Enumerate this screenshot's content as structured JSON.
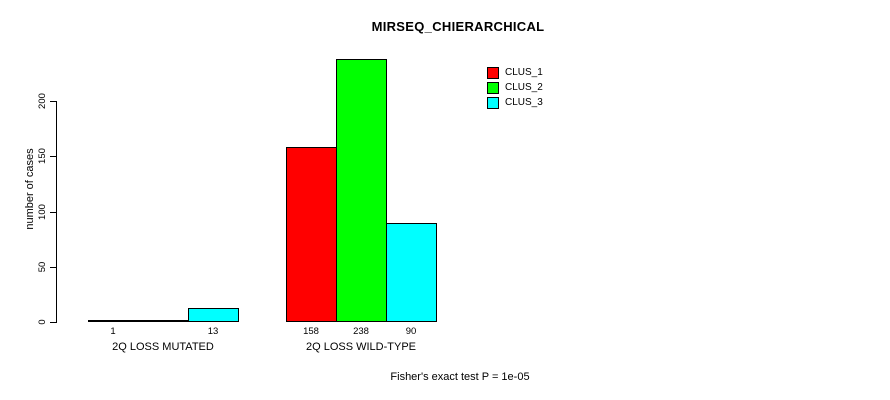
{
  "chart_data": {
    "type": "bar",
    "title": "MIRSEQ_CHIERARCHICAL",
    "ylabel": "number of cases",
    "xlabel": "",
    "categories": [
      "2Q LOSS MUTATED",
      "2Q LOSS WILD-TYPE"
    ],
    "series": [
      {
        "name": "CLUS_1",
        "color": "#FF0000",
        "values": [
          1,
          158
        ]
      },
      {
        "name": "CLUS_2",
        "color": "#00FF00",
        "values": [
          0,
          238
        ]
      },
      {
        "name": "CLUS_3",
        "color": "#00FFFF",
        "values": [
          13,
          90
        ]
      }
    ],
    "bar_value_labels": [
      [
        "1",
        "",
        "13"
      ],
      [
        "158",
        "238",
        "90"
      ]
    ],
    "yticks": [
      0,
      50,
      100,
      150,
      200
    ],
    "ylim": [
      0,
      240
    ],
    "grid": false,
    "legend_position": "top-right",
    "annotation": "Fisher's exact test P = 1e-05",
    "bar_border_color": "#000000",
    "axis_color": "#000000"
  }
}
